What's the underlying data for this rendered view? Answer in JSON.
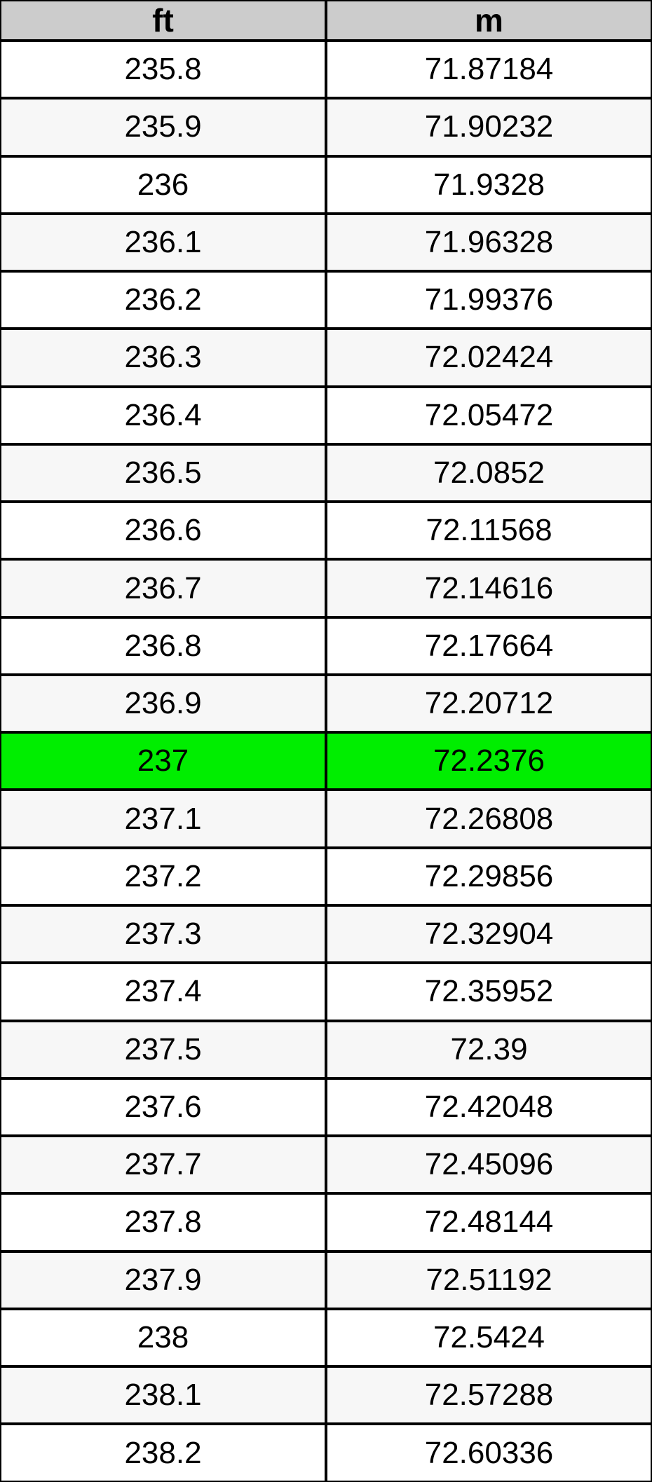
{
  "chart_data": {
    "type": "table",
    "columns": [
      "ft",
      "m"
    ],
    "rows": [
      [
        "235.8",
        "71.87184"
      ],
      [
        "235.9",
        "71.90232"
      ],
      [
        "236",
        "71.9328"
      ],
      [
        "236.1",
        "71.96328"
      ],
      [
        "236.2",
        "71.99376"
      ],
      [
        "236.3",
        "72.02424"
      ],
      [
        "236.4",
        "72.05472"
      ],
      [
        "236.5",
        "72.0852"
      ],
      [
        "236.6",
        "72.11568"
      ],
      [
        "236.7",
        "72.14616"
      ],
      [
        "236.8",
        "72.17664"
      ],
      [
        "236.9",
        "72.20712"
      ],
      [
        "237",
        "72.2376"
      ],
      [
        "237.1",
        "72.26808"
      ],
      [
        "237.2",
        "72.29856"
      ],
      [
        "237.3",
        "72.32904"
      ],
      [
        "237.4",
        "72.35952"
      ],
      [
        "237.5",
        "72.39"
      ],
      [
        "237.6",
        "72.42048"
      ],
      [
        "237.7",
        "72.45096"
      ],
      [
        "237.8",
        "72.48144"
      ],
      [
        "237.9",
        "72.51192"
      ],
      [
        "238",
        "72.5424"
      ],
      [
        "238.1",
        "72.57288"
      ],
      [
        "238.2",
        "72.60336"
      ]
    ],
    "highlighted_row_index": 12,
    "highlighted_row": {
      "ft": "237",
      "m": "72.2376"
    },
    "layout_hints": {
      "grid": "on",
      "alternating_rows": true,
      "header_position": "top"
    }
  },
  "colors": {
    "header_bg": "#cccccc",
    "row_odd_bg": "#ffffff",
    "row_even_bg": "#f7f7f7",
    "highlight_bg": "#00ee00",
    "border_color": "#000000",
    "text_color": "#000000"
  }
}
